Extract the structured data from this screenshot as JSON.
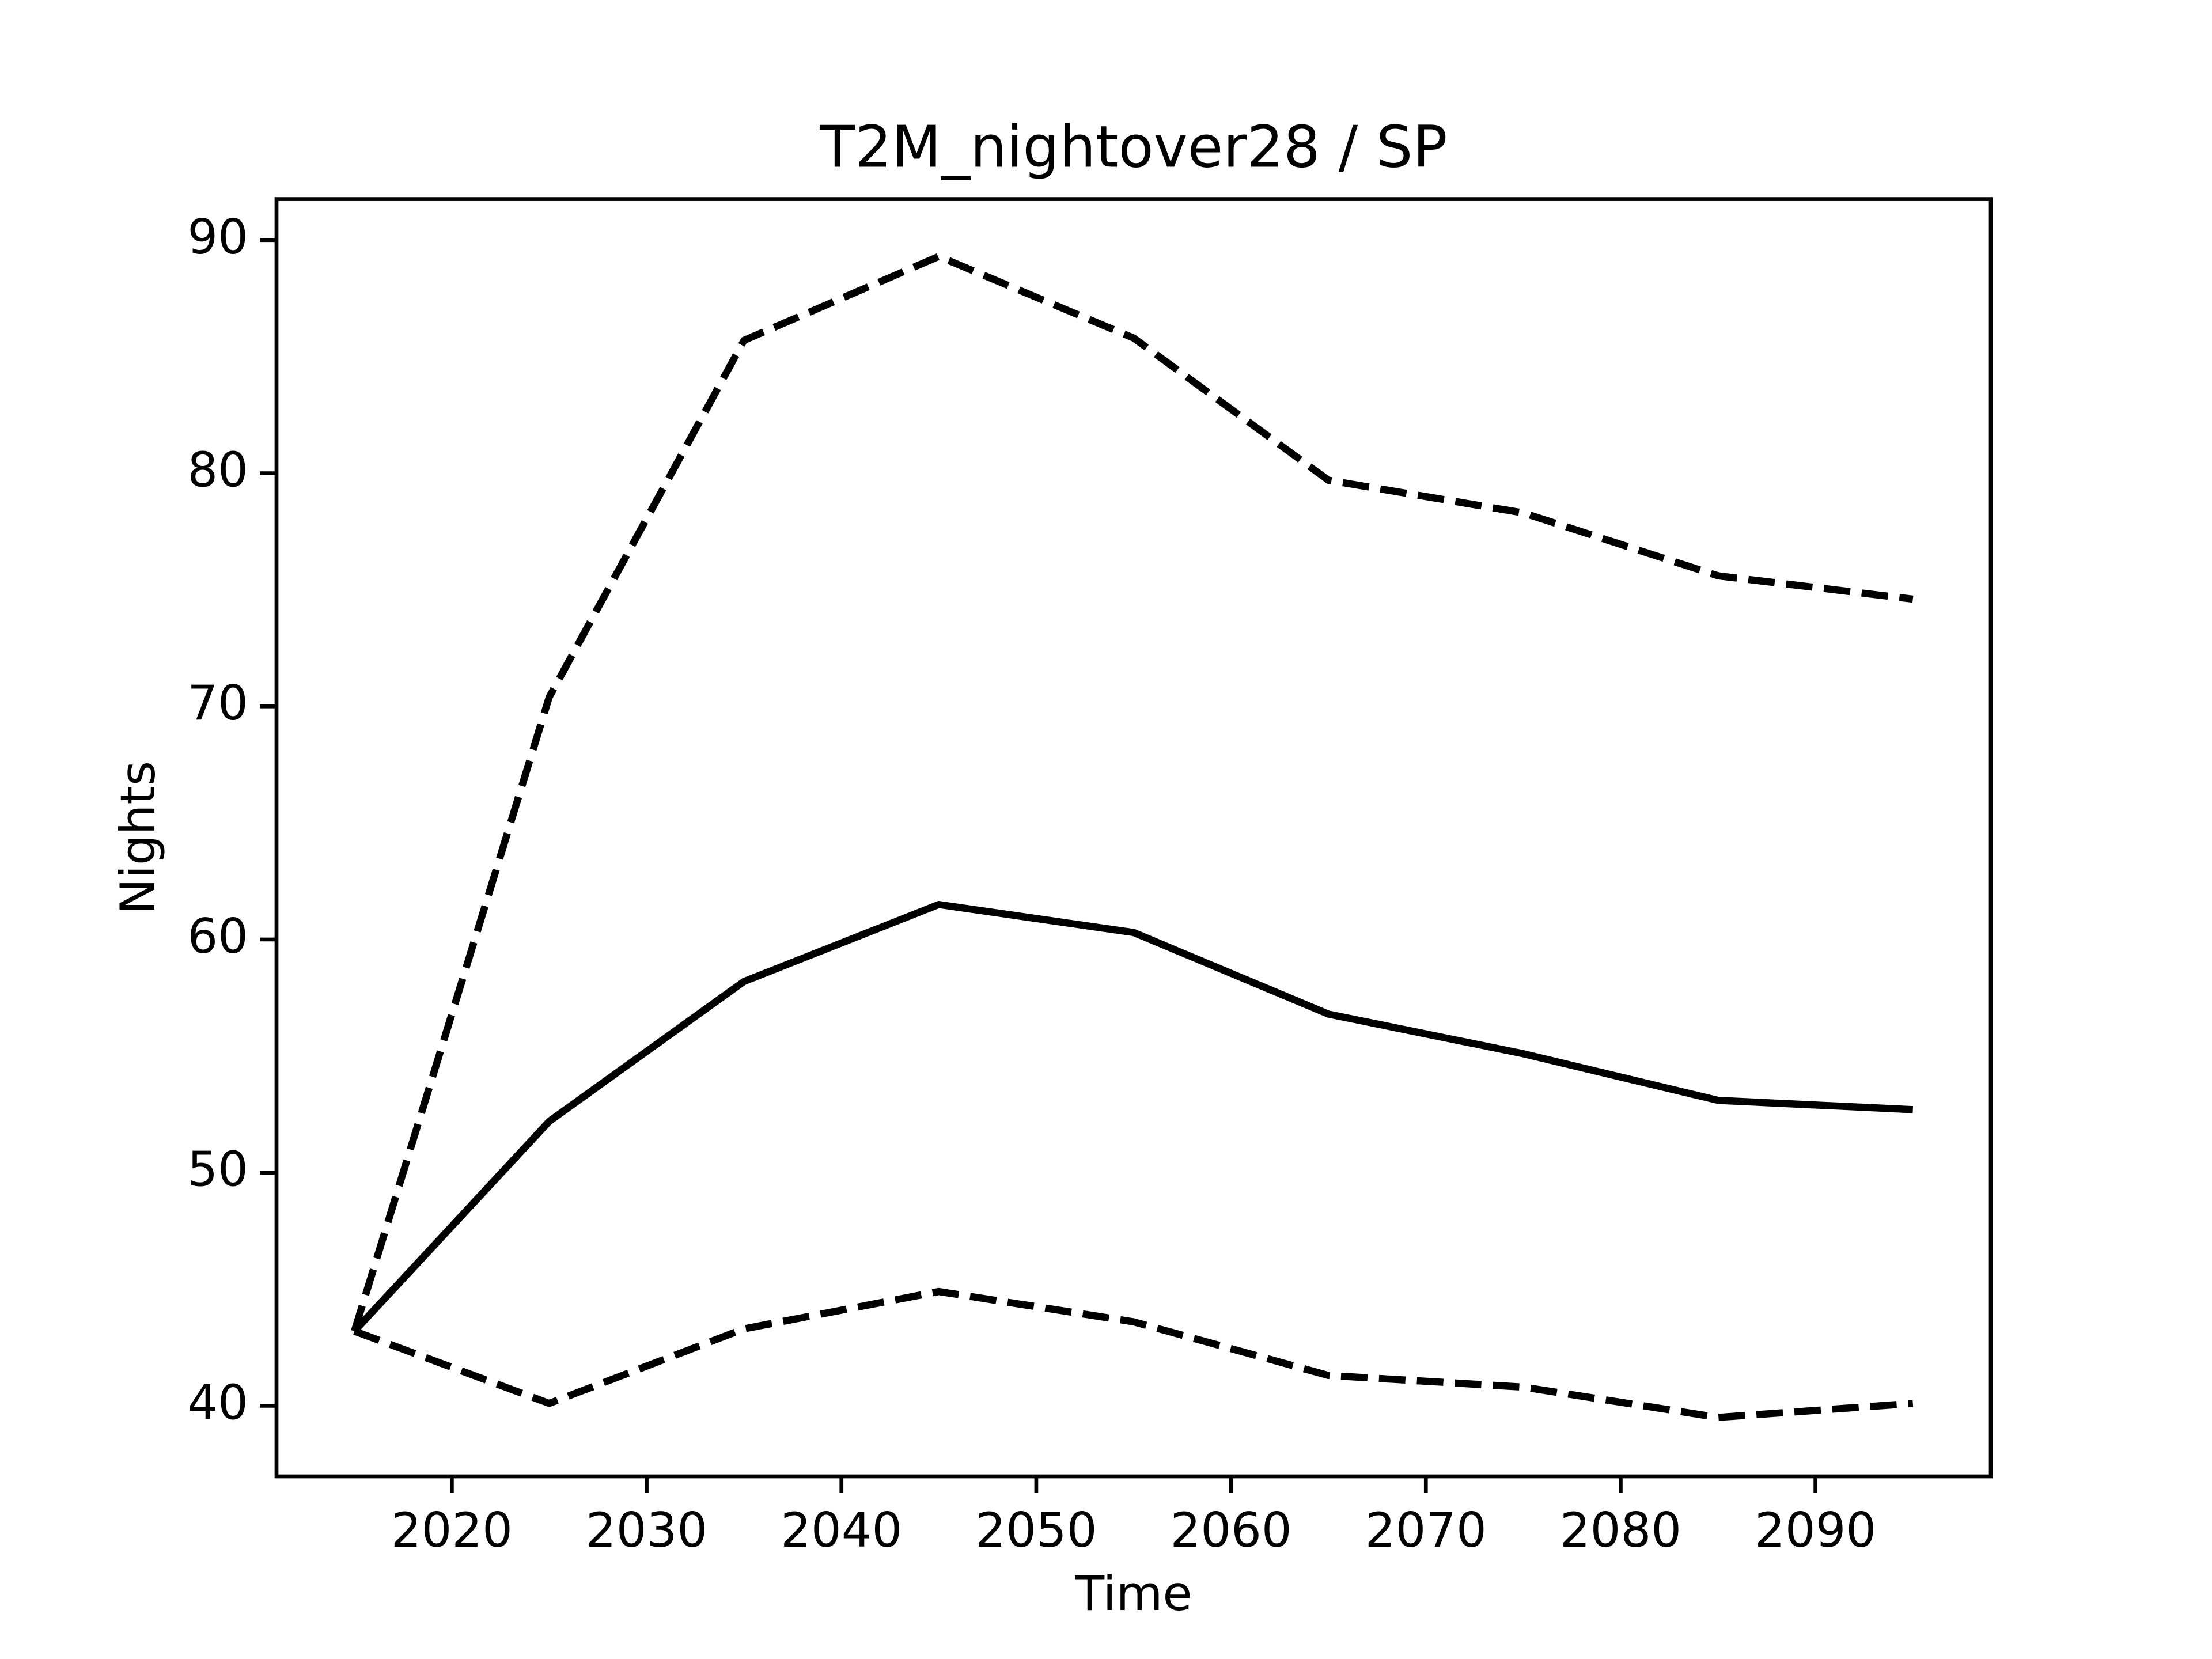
{
  "chart_data": {
    "type": "line",
    "title": "T2M_nightover28 / SP",
    "xlabel": "Time",
    "ylabel": "Nights",
    "x": [
      2015,
      2025,
      2035,
      2045,
      2055,
      2065,
      2075,
      2085,
      2095
    ],
    "series": [
      {
        "color": "#000000",
        "linestyle": "solid",
        "values": [
          43.2,
          52.2,
          58.2,
          61.5,
          60.3,
          56.8,
          55.1,
          53.1,
          52.7
        ]
      },
      {
        "color": "#000000",
        "linestyle": "dashed",
        "values": [
          43.2,
          70.4,
          85.7,
          89.3,
          85.8,
          79.7,
          78.3,
          75.6,
          74.6
        ]
      },
      {
        "color": "#000000",
        "linestyle": "dashed",
        "values": [
          43.2,
          40.1,
          43.3,
          44.9,
          43.6,
          41.3,
          40.8,
          39.5,
          40.1
        ]
      }
    ],
    "xlim": [
      2011,
      2099
    ],
    "xticks": [
      2020,
      2030,
      2040,
      2050,
      2060,
      2070,
      2080,
      2090
    ],
    "ylim": [
      36.97,
      91.76
    ],
    "yticks": [
      40,
      50,
      60,
      70,
      80,
      90
    ],
    "grid": false
  }
}
